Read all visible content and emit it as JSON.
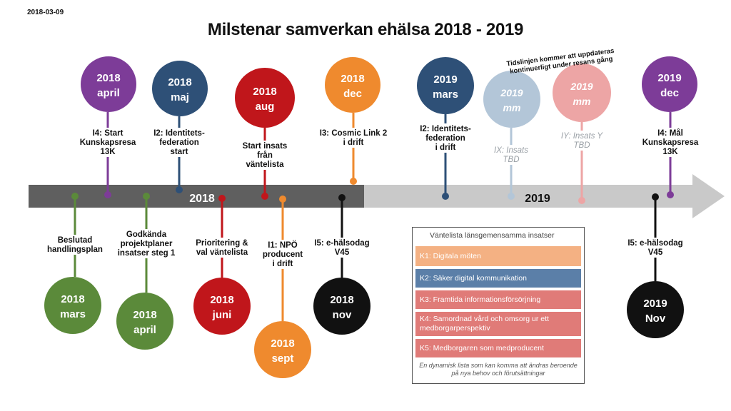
{
  "date": "2018-03-09",
  "title": "Milstenar samverkan ehälsa 2018 - 2019",
  "update_note": [
    "Tidslinjen kommer att uppdateras",
    "kontinuerligt under resans gång"
  ],
  "bar": {
    "year_2018": "2018",
    "year_2019": "2019",
    "colors": {
      "dark": "#5f5f5f",
      "light": "#c9c9c9"
    }
  },
  "milestones": [
    {
      "id": "m-2018-mars",
      "circle": [
        "2018",
        "mars"
      ],
      "color": "#5b8a3a",
      "position": "below",
      "label": [
        "Beslutad",
        "handlingsplan"
      ]
    },
    {
      "id": "m-2018-april-top",
      "circle": [
        "2018",
        "april"
      ],
      "color": "#7d3c98",
      "position": "above",
      "label": [
        "I4: Start",
        "Kunskapsresa",
        "13K"
      ]
    },
    {
      "id": "m-2018-april-bottom",
      "circle": [
        "2018",
        "april"
      ],
      "color": "#5b8a3a",
      "position": "below",
      "label": [
        "Godkända",
        "projektplaner",
        "insatser steg 1"
      ]
    },
    {
      "id": "m-2018-maj",
      "circle": [
        "2018",
        "maj"
      ],
      "color": "#2e5077",
      "position": "above",
      "label": [
        "I2: Identitets-",
        "federation",
        "start"
      ]
    },
    {
      "id": "m-2018-juni",
      "circle": [
        "2018",
        "juni"
      ],
      "color": "#c0161b",
      "position": "below",
      "label": [
        "Prioritering &",
        "val väntelista"
      ]
    },
    {
      "id": "m-2018-aug",
      "circle": [
        "2018",
        "aug"
      ],
      "color": "#c0161b",
      "position": "above",
      "label": [
        "Start insats",
        "från",
        "väntelista"
      ]
    },
    {
      "id": "m-2018-sept",
      "circle": [
        "2018",
        "sept"
      ],
      "color": "#ef8a2e",
      "position": "below",
      "label": [
        "I1: NPÖ",
        "producent",
        "i drift"
      ]
    },
    {
      "id": "m-2018-nov",
      "circle": [
        "2018",
        "nov"
      ],
      "color": "#111111",
      "position": "below",
      "label": [
        "I5: e-hälsodag",
        "V45"
      ]
    },
    {
      "id": "m-2018-dec",
      "circle": [
        "2018",
        "dec"
      ],
      "color": "#ef8a2e",
      "position": "above",
      "label": [
        "I3: Cosmic Link 2",
        "i drift"
      ]
    },
    {
      "id": "m-2019-mars",
      "circle": [
        "2019",
        "mars"
      ],
      "color": "#2e5077",
      "position": "above",
      "label": [
        "I2: Identitets-",
        "federation",
        "i drift"
      ]
    },
    {
      "id": "m-2019-mm-1",
      "circle": [
        "2019",
        "mm"
      ],
      "color": "#b3c6d8",
      "position": "above",
      "label": [
        "IX: Insats",
        "TBD"
      ],
      "tbd": true
    },
    {
      "id": "m-2019-mm-2",
      "circle": [
        "2019",
        "mm"
      ],
      "color": "#eda5a5",
      "position": "above",
      "label": [
        "IY: Insats Y",
        "TBD"
      ],
      "tbd": true
    },
    {
      "id": "m-2019-nov",
      "circle": [
        "2019",
        "Nov"
      ],
      "color": "#111111",
      "position": "below",
      "label": [
        "I5: e-hälsodag",
        "V45"
      ]
    },
    {
      "id": "m-2019-dec",
      "circle": [
        "2019",
        "dec"
      ],
      "color": "#7d3c98",
      "position": "above",
      "label": [
        "I4: Mål",
        "Kunskapsresa",
        "13K"
      ]
    }
  ],
  "legend": {
    "title": "Väntelista länsgemensamma insatser",
    "items": [
      {
        "label": "K1: Digitala möten",
        "color": "#f4b183"
      },
      {
        "label": "K2: Säker digital kommunikation",
        "color": "#5b7fa8"
      },
      {
        "label": "K3: Framtida informationsförsörjning",
        "color": "#e07b78"
      },
      {
        "label": "K4: Samordnad vård och omsorg ur ett medborgarperspektiv",
        "color": "#e07b78"
      },
      {
        "label": "K5: Medborgaren som medproducent",
        "color": "#e07b78"
      }
    ],
    "note": "En dynamisk lista som kan komma att ändras beroende på nya behov och förutsättningar"
  }
}
